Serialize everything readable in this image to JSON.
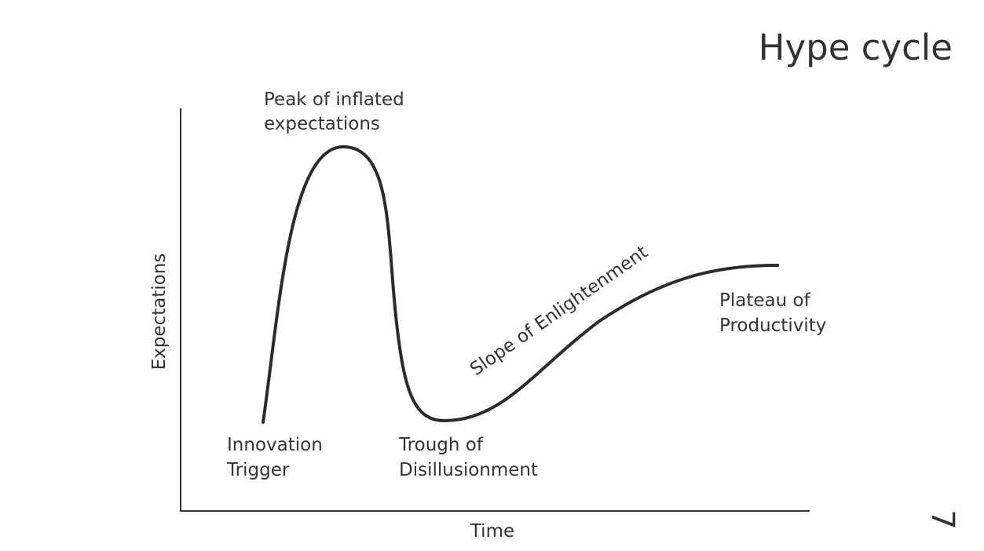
{
  "title": "Hype cycle",
  "axes": {
    "y_label": "Expectations",
    "x_label": "Time"
  },
  "phases": [
    {
      "lines": [
        "Innovation",
        "Trigger"
      ]
    },
    {
      "lines": [
        "Peak of inflated",
        "expectations"
      ]
    },
    {
      "lines": [
        "Trough of",
        "Disillusionment"
      ]
    },
    {
      "lines": [
        "Slope of Enlightenment"
      ]
    },
    {
      "lines": [
        "Plateau of",
        "Productivity"
      ]
    }
  ],
  "page_number": "7"
}
